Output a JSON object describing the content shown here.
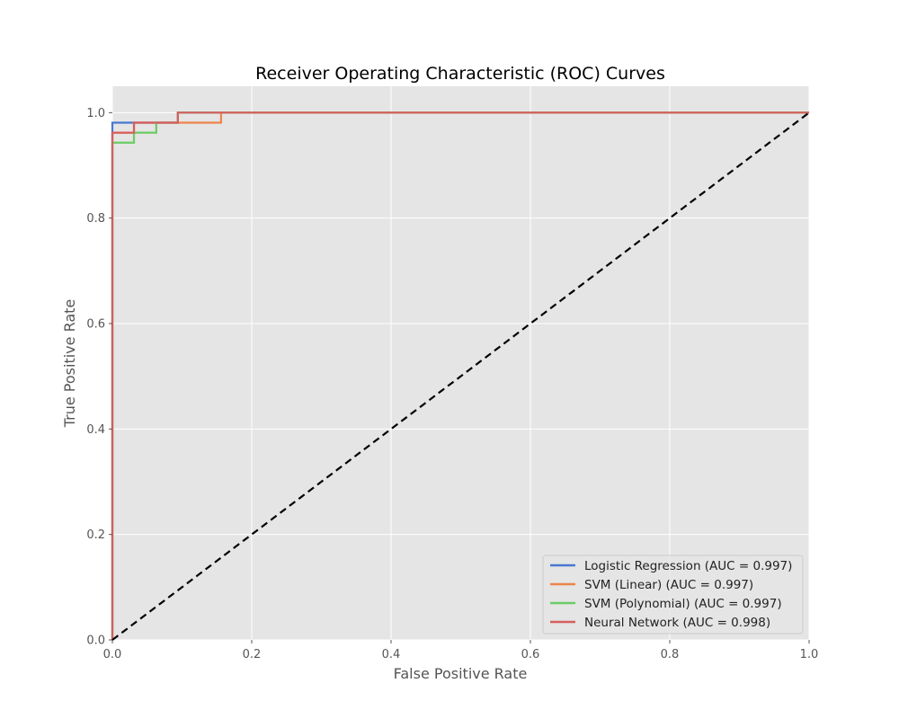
{
  "chart_data": {
    "type": "line",
    "title": "Receiver Operating Characteristic (ROC) Curves",
    "xlabel": "False Positive Rate",
    "ylabel": "True Positive Rate",
    "xlim": [
      0.0,
      1.0
    ],
    "ylim": [
      0.0,
      1.05
    ],
    "xticks": [
      "0.0",
      "0.2",
      "0.4",
      "0.6",
      "0.8",
      "1.0"
    ],
    "yticks": [
      "0.0",
      "0.2",
      "0.4",
      "0.6",
      "0.8",
      "1.0"
    ],
    "grid": true,
    "legend_position": "lower-right",
    "series": [
      {
        "name": "Logistic Regression (AUC = 0.997)",
        "color": "#4878d0",
        "x": [
          0.0,
          0.0,
          0.0,
          0.031,
          0.031,
          0.094,
          0.094,
          1.0
        ],
        "y": [
          0.0,
          0.0,
          0.981,
          0.981,
          0.981,
          0.981,
          1.0,
          1.0
        ]
      },
      {
        "name": "SVM (Linear) (AUC = 0.997)",
        "color": "#ee854a",
        "x": [
          0.0,
          0.0,
          0.031,
          0.031,
          0.156,
          0.156,
          1.0
        ],
        "y": [
          0.0,
          0.962,
          0.962,
          0.981,
          0.981,
          1.0,
          1.0
        ]
      },
      {
        "name": "SVM (Polynomial) (AUC = 0.997)",
        "color": "#6acc64",
        "x": [
          0.0,
          0.0,
          0.031,
          0.031,
          0.063,
          0.063,
          0.094,
          0.094,
          1.0
        ],
        "y": [
          0.0,
          0.943,
          0.943,
          0.962,
          0.962,
          0.981,
          0.981,
          1.0,
          1.0
        ]
      },
      {
        "name": "Neural Network (AUC = 0.998)",
        "color": "#d65f5f",
        "x": [
          0.0,
          0.0,
          0.031,
          0.031,
          0.094,
          0.094,
          1.0
        ],
        "y": [
          0.0,
          0.962,
          0.962,
          0.981,
          0.981,
          1.0,
          1.0
        ]
      }
    ],
    "reference_line": {
      "x": [
        0.0,
        1.0
      ],
      "y": [
        0.0,
        1.0
      ],
      "color": "#000000",
      "style": "dashed"
    }
  }
}
